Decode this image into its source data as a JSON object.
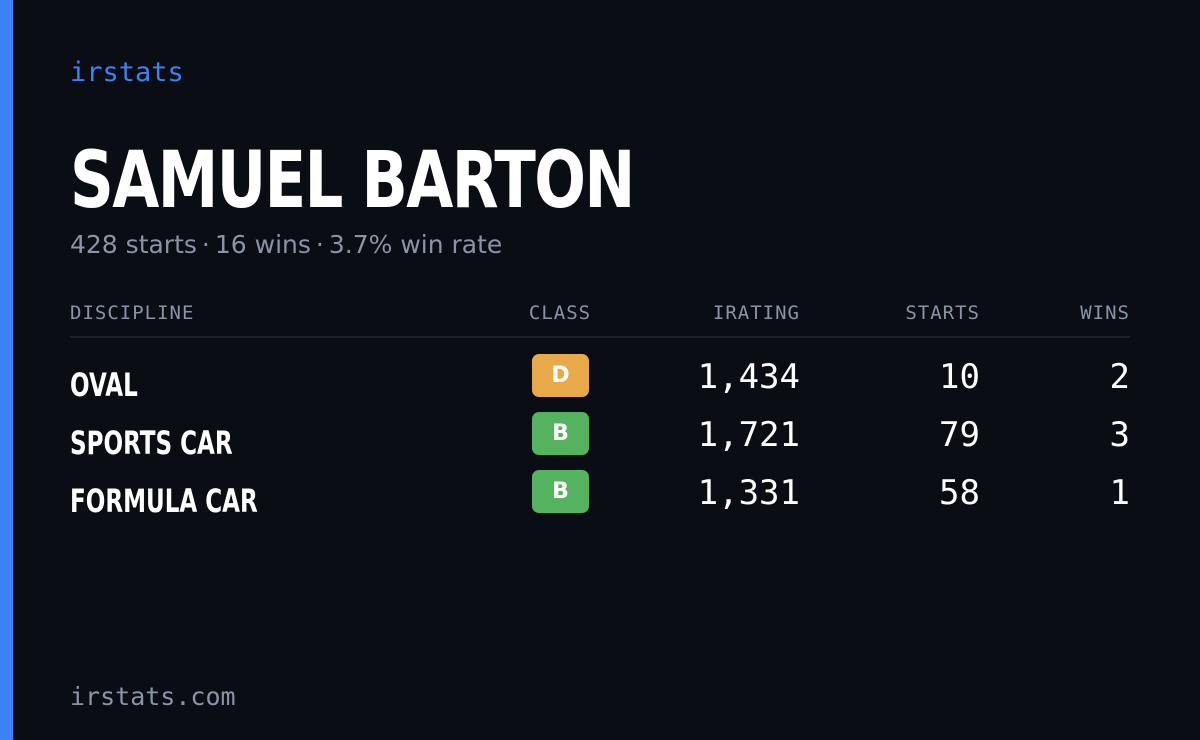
{
  "brand": "irstats",
  "driver": {
    "name": "SAMUEL BARTON",
    "starts_text": "428 starts",
    "wins_text": "16 wins",
    "win_rate_text": "3.7% win rate",
    "separator": "·"
  },
  "table": {
    "headers": {
      "discipline": "DISCIPLINE",
      "class": "CLASS",
      "irating": "IRATING",
      "starts": "STARTS",
      "wins": "WINS"
    },
    "rows": [
      {
        "discipline": "OVAL",
        "class": "D",
        "class_color": "#e8a94b",
        "irating": "1,434",
        "starts": "10",
        "wins": "2"
      },
      {
        "discipline": "SPORTS CAR",
        "class": "B",
        "class_color": "#55b35f",
        "irating": "1,721",
        "starts": "79",
        "wins": "3"
      },
      {
        "discipline": "FORMULA CAR",
        "class": "B",
        "class_color": "#55b35f",
        "irating": "1,331",
        "starts": "58",
        "wins": "1"
      }
    ]
  },
  "footer": "irstats.com",
  "colors": {
    "accent": "#3b82f6",
    "background": "#0a0d14",
    "muted": "#8b93a7"
  }
}
